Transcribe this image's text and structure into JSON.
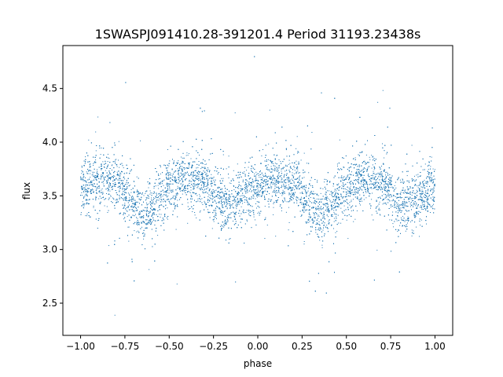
{
  "chart_data": {
    "type": "scatter",
    "title": "1SWASPJ091410.28-391201.4 Period 31193.23438s",
    "xlabel": "phase",
    "ylabel": "flux",
    "xlim": [
      -1.1,
      1.1
    ],
    "ylim": [
      2.2,
      4.9
    ],
    "grid": false,
    "xticks": [
      -1.0,
      -0.75,
      -0.5,
      -0.25,
      0.0,
      0.25,
      0.5,
      0.75,
      1.0
    ],
    "xtick_labels": [
      "−1.00",
      "−0.75",
      "−0.50",
      "−0.25",
      "0.00",
      "0.25",
      "0.50",
      "0.75",
      "1.00"
    ],
    "yticks": [
      2.5,
      3.0,
      3.5,
      4.0,
      4.5
    ],
    "ytick_labels": [
      "2.5",
      "3.0",
      "3.5",
      "4.0",
      "4.5"
    ],
    "marker_color": "#1f77b4",
    "folded_light_curve": {
      "phase": [
        -1.0,
        -0.9,
        -0.8,
        -0.7,
        -0.65,
        -0.6,
        -0.5,
        -0.4,
        -0.3,
        -0.2,
        -0.15,
        -0.1,
        0.0,
        0.1,
        0.2,
        0.3,
        0.35,
        0.4,
        0.5,
        0.6,
        0.7,
        0.8,
        0.85,
        0.9,
        1.0
      ],
      "flux": [
        3.58,
        3.62,
        3.63,
        3.42,
        3.32,
        3.4,
        3.58,
        3.66,
        3.6,
        3.45,
        3.4,
        3.48,
        3.6,
        3.63,
        3.62,
        3.42,
        3.32,
        3.4,
        3.58,
        3.66,
        3.6,
        3.45,
        3.4,
        3.48,
        3.58
      ]
    }
  }
}
